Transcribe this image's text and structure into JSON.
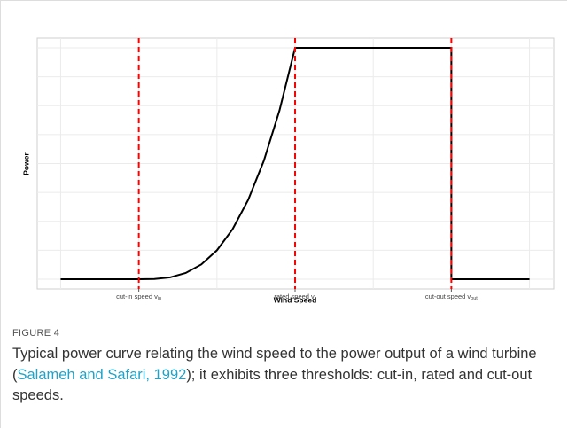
{
  "chart_data": {
    "type": "line",
    "xlabel": "Wind Speed",
    "ylabel": "Power",
    "xlim": [
      -1.35,
      28.4
    ],
    "ylim": [
      -0.042,
      1.042
    ],
    "xticks": [
      {
        "value": 4.5,
        "label": "cut-in speed v",
        "sub": "in"
      },
      {
        "value": 13.5,
        "label": "rated speed v",
        "sub": "r"
      },
      {
        "value": 22.5,
        "label": "cut-out speed v",
        "sub": "out"
      }
    ],
    "vlines": [
      4.5,
      13.5,
      22.5
    ],
    "vline_color": "#ff0000",
    "grid": true,
    "series": [
      {
        "color": "#000000",
        "x": [
          0,
          4.5,
          5.4,
          6.3,
          7.2,
          8.1,
          9,
          9.9,
          10.8,
          11.7,
          12.6,
          13.5,
          22.5,
          22.5,
          27
        ],
        "values": [
          0,
          0,
          0.001,
          0.008,
          0.027,
          0.064,
          0.125,
          0.216,
          0.343,
          0.512,
          0.729,
          1,
          1,
          0,
          0
        ]
      }
    ]
  },
  "figure": {
    "label": "FIGURE 4",
    "caption_before": "Typical power curve relating the wind speed to the power output of a wind turbine (",
    "caption_link": "Salameh and Safari, 1992",
    "caption_after": "); it exhibits three thresholds: cut-in, rated and cut-out speeds."
  }
}
